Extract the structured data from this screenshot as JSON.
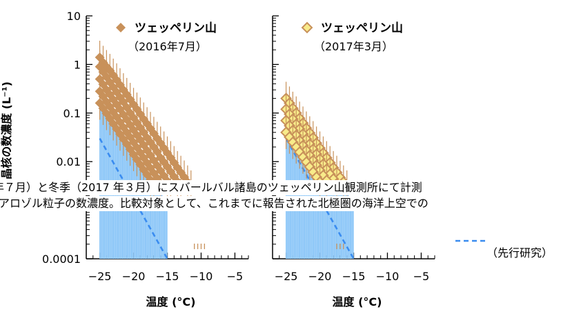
{
  "chart_data": [
    {
      "type": "scatter",
      "scale": "log-y",
      "xlabel": "温度 (°C)",
      "ylabel": "晶核の数濃度 (L⁻¹)",
      "xlim": [
        -27,
        -3
      ],
      "ylim": [
        0.0001,
        10
      ],
      "x_ticks": [
        "−25",
        "−20",
        "−15",
        "−10",
        "−5"
      ],
      "y_ticks": [
        "0.0001",
        "0.01",
        "0.1",
        "1",
        "10"
      ],
      "series": [
        {
          "name": "ツェッペリン山",
          "sub": "（2016年7月）",
          "color": "#c8915a",
          "marker": "diamond-filled",
          "points": [
            [
              -25,
              1.4
            ],
            [
              -24.5,
              1.1
            ],
            [
              -24,
              0.9
            ],
            [
              -23.5,
              0.75
            ],
            [
              -23,
              0.6
            ],
            [
              -22.5,
              0.48
            ],
            [
              -22,
              0.38
            ],
            [
              -21.5,
              0.3
            ],
            [
              -21,
              0.24
            ],
            [
              -20.5,
              0.19
            ],
            [
              -20,
              0.15
            ],
            [
              -19.5,
              0.12
            ],
            [
              -19,
              0.095
            ],
            [
              -18.5,
              0.075
            ],
            [
              -18,
              0.06
            ],
            [
              -17.5,
              0.048
            ],
            [
              -17,
              0.038
            ],
            [
              -16.5,
              0.03
            ],
            [
              -16,
              0.024
            ],
            [
              -15.5,
              0.019
            ],
            [
              -15,
              0.015
            ],
            [
              -14.5,
              0.012
            ],
            [
              -14,
              0.0095
            ],
            [
              -13.5,
              0.0075
            ],
            [
              -13,
              0.006
            ],
            [
              -12.5,
              0.0048
            ],
            [
              -12,
              0.0038
            ],
            [
              -11.5,
              0.003
            ],
            [
              -25,
              0.9
            ],
            [
              -24.5,
              0.7
            ],
            [
              -24,
              0.55
            ],
            [
              -23.5,
              0.43
            ],
            [
              -23,
              0.34
            ],
            [
              -22.5,
              0.27
            ],
            [
              -22,
              0.21
            ],
            [
              -21.5,
              0.17
            ],
            [
              -21,
              0.13
            ],
            [
              -20.5,
              0.1
            ],
            [
              -20,
              0.08
            ],
            [
              -19.5,
              0.063
            ],
            [
              -19,
              0.05
            ],
            [
              -18.5,
              0.04
            ],
            [
              -18,
              0.031
            ],
            [
              -17.5,
              0.025
            ],
            [
              -17,
              0.02
            ],
            [
              -16.5,
              0.016
            ],
            [
              -16,
              0.012
            ],
            [
              -15.5,
              0.0098
            ],
            [
              -15,
              0.0078
            ],
            [
              -14.5,
              0.0062
            ],
            [
              -14,
              0.0049
            ],
            [
              -13.5,
              0.0039
            ],
            [
              -13,
              0.0031
            ],
            [
              -25,
              0.5
            ],
            [
              -24.5,
              0.39
            ],
            [
              -24,
              0.3
            ],
            [
              -23.5,
              0.24
            ],
            [
              -23,
              0.19
            ],
            [
              -22.5,
              0.15
            ],
            [
              -22,
              0.12
            ],
            [
              -21.5,
              0.093
            ],
            [
              -21,
              0.073
            ],
            [
              -20.5,
              0.057
            ],
            [
              -20,
              0.045
            ],
            [
              -19.5,
              0.035
            ],
            [
              -19,
              0.028
            ],
            [
              -18.5,
              0.022
            ],
            [
              -18,
              0.017
            ],
            [
              -17.5,
              0.0135
            ],
            [
              -17,
              0.0106
            ],
            [
              -16.5,
              0.0083
            ],
            [
              -16,
              0.0065
            ],
            [
              -15.5,
              0.0051
            ],
            [
              -15,
              0.004
            ],
            [
              -14.5,
              0.0032
            ],
            [
              -25,
              0.28
            ],
            [
              -24.5,
              0.22
            ],
            [
              -24,
              0.17
            ],
            [
              -23.5,
              0.135
            ],
            [
              -23,
              0.105
            ],
            [
              -22.5,
              0.083
            ],
            [
              -22,
              0.065
            ],
            [
              -21.5,
              0.051
            ],
            [
              -21,
              0.04
            ],
            [
              -20.5,
              0.032
            ],
            [
              -20,
              0.025
            ],
            [
              -19.5,
              0.0195
            ],
            [
              -19,
              0.0153
            ],
            [
              -18.5,
              0.012
            ],
            [
              -18,
              0.0094
            ],
            [
              -17.5,
              0.0074
            ],
            [
              -17,
              0.0058
            ],
            [
              -16.5,
              0.0046
            ],
            [
              -16,
              0.0036
            ],
            [
              -25,
              0.16
            ],
            [
              -24.5,
              0.125
            ],
            [
              -24,
              0.098
            ],
            [
              -23.5,
              0.077
            ],
            [
              -23,
              0.06
            ],
            [
              -22.5,
              0.047
            ],
            [
              -22,
              0.037
            ],
            [
              -21.5,
              0.029
            ],
            [
              -21,
              0.023
            ],
            [
              -20.5,
              0.018
            ],
            [
              -20,
              0.014
            ],
            [
              -19.5,
              0.011
            ],
            [
              -19,
              0.0087
            ],
            [
              -18.5,
              0.0068
            ],
            [
              -18,
              0.0054
            ],
            [
              -17.5,
              0.0042
            ],
            [
              -17,
              0.0033
            ],
            [
              -11,
              0.00018
            ],
            [
              -10.5,
              0.00018
            ],
            [
              -10,
              0.00018
            ],
            [
              -9.5,
              0.00018
            ]
          ]
        },
        {
          "name": "（先行研究）",
          "color": "#3a8cf0",
          "fill": "#8fc8f8",
          "marker": "dashed-band",
          "upper": [
            [
              -25,
              0.17
            ],
            [
              -15,
              0.0014
            ]
          ],
          "lower": [
            [
              -25,
              0.03
            ],
            [
              -15,
              0.0001
            ]
          ]
        }
      ]
    },
    {
      "type": "scatter",
      "scale": "log-y",
      "xlabel": "温度 (°C)",
      "ylabel": "",
      "xlim": [
        -27,
        -3
      ],
      "ylim": [
        0.0001,
        10
      ],
      "x_ticks": [
        "−25",
        "−20",
        "−15",
        "−10",
        "−5"
      ],
      "series": [
        {
          "name": "ツェッペリン山",
          "sub": "（2017年3月）",
          "color": "#c8915a",
          "fill": "#f8eb8a",
          "marker": "diamond-open",
          "points": [
            [
              -25,
              0.2
            ],
            [
              -24.5,
              0.16
            ],
            [
              -24,
              0.125
            ],
            [
              -23.5,
              0.1
            ],
            [
              -23,
              0.078
            ],
            [
              -22.5,
              0.062
            ],
            [
              -22,
              0.049
            ],
            [
              -21.5,
              0.039
            ],
            [
              -21,
              0.031
            ],
            [
              -20.5,
              0.024
            ],
            [
              -20,
              0.019
            ],
            [
              -19.5,
              0.015
            ],
            [
              -19,
              0.012
            ],
            [
              -18.5,
              0.0095
            ],
            [
              -18,
              0.0075
            ],
            [
              -17.5,
              0.006
            ],
            [
              -17,
              0.0047
            ],
            [
              -16.5,
              0.0038
            ],
            [
              -16,
              0.003
            ],
            [
              -25,
              0.12
            ],
            [
              -24.5,
              0.095
            ],
            [
              -24,
              0.075
            ],
            [
              -23.5,
              0.059
            ],
            [
              -23,
              0.047
            ],
            [
              -22.5,
              0.037
            ],
            [
              -22,
              0.029
            ],
            [
              -21.5,
              0.023
            ],
            [
              -21,
              0.018
            ],
            [
              -20.5,
              0.0143
            ],
            [
              -20,
              0.0113
            ],
            [
              -19.5,
              0.0089
            ],
            [
              -19,
              0.007
            ],
            [
              -18.5,
              0.0055
            ],
            [
              -18,
              0.0044
            ],
            [
              -17.5,
              0.0035
            ],
            [
              -25,
              0.07
            ],
            [
              -24.5,
              0.055
            ],
            [
              -24,
              0.044
            ],
            [
              -23.5,
              0.035
            ],
            [
              -23,
              0.027
            ],
            [
              -22.5,
              0.0215
            ],
            [
              -22,
              0.017
            ],
            [
              -21.5,
              0.0134
            ],
            [
              -21,
              0.0106
            ],
            [
              -20.5,
              0.0084
            ],
            [
              -20,
              0.0066
            ],
            [
              -19.5,
              0.0052
            ],
            [
              -19,
              0.0041
            ],
            [
              -25,
              0.04
            ],
            [
              -24.5,
              0.032
            ],
            [
              -24,
              0.025
            ],
            [
              -23.5,
              0.02
            ],
            [
              -23,
              0.0157
            ],
            [
              -22.5,
              0.0124
            ],
            [
              -22,
              0.0098
            ],
            [
              -21.5,
              0.0078
            ],
            [
              -21,
              0.0061
            ],
            [
              -20.5,
              0.0048
            ],
            [
              -20,
              0.0038
            ],
            [
              -17.5,
              0.00018
            ],
            [
              -17,
              0.00018
            ],
            [
              -16.5,
              0.00018
            ]
          ]
        },
        {
          "name": "",
          "color": "#3a8cf0",
          "fill": "#8fc8f8",
          "marker": "dashed-band",
          "upper": [
            [
              -25,
              0.17
            ],
            [
              -15,
              0.0014
            ]
          ],
          "lower": [
            [
              -25,
              0.03
            ],
            [
              -15,
              0.0001
            ]
          ]
        }
      ]
    }
  ],
  "caption": {
    "line1": "年７月）と冬季（2017 年３月）にスバールバル諸島のツェッペリン山観測所にて計測",
    "line2": "アロゾル粒子の数濃度。比較対象として、これまでに報告された北極圏の海洋上空での"
  },
  "legend_bottom": "（先行研究）"
}
